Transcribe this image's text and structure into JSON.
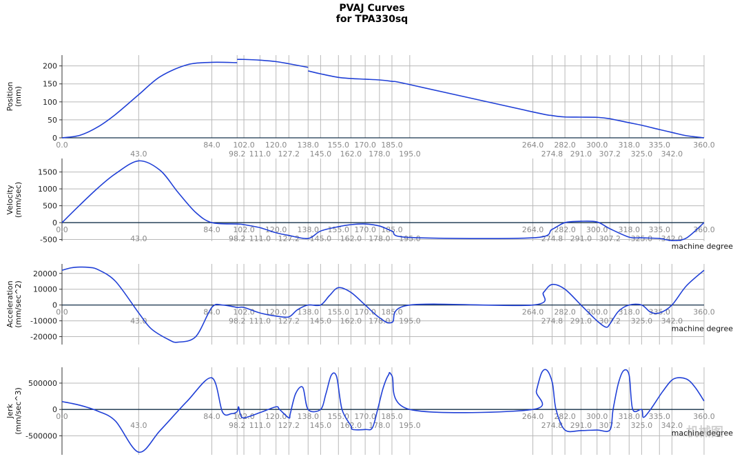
{
  "title_line1": "PVAJ Curves",
  "title_line2": "for TPA330sq",
  "watermark": "机械图",
  "colors": {
    "curve": "#1f3fd6",
    "grid": "#b8b8b8",
    "axis": "#14304a",
    "tick": "#888888"
  },
  "chart_data": [
    {
      "type": "line",
      "ylabel": [
        "Position",
        "(mm)"
      ],
      "xlabel": "",
      "ylim": [
        0,
        230
      ],
      "yticks": [
        0,
        50,
        100,
        150,
        200
      ],
      "xlim": [
        0,
        360
      ],
      "x": [
        0,
        10,
        20,
        30,
        43,
        55,
        70,
        84,
        98.2,
        98.2,
        102,
        111,
        120,
        127.2,
        138,
        138,
        145,
        155,
        162,
        170,
        178,
        185,
        195,
        264,
        274.8,
        282,
        291,
        300,
        307.2,
        318,
        325,
        335,
        342,
        350,
        360
      ],
      "y": [
        0,
        7,
        30,
        65,
        120,
        170,
        203,
        210,
        209,
        218,
        218,
        216,
        212,
        206,
        196,
        186,
        178,
        168,
        165,
        163,
        161,
        157,
        148,
        72,
        62,
        58,
        57.5,
        57,
        53,
        42,
        35,
        23,
        15,
        6,
        0
      ]
    },
    {
      "type": "line",
      "ylabel": [
        "Velocity",
        "(mm/sec)"
      ],
      "xlabel": "machine degree",
      "ylim": [
        -550,
        1900
      ],
      "yticks": [
        -500,
        0,
        500,
        1000,
        1500
      ],
      "xlim": [
        0,
        360
      ],
      "x": [
        0,
        10,
        20,
        30,
        43,
        55,
        65,
        75,
        84,
        98.2,
        102,
        111,
        120,
        127.2,
        138,
        145,
        155,
        162,
        170,
        178,
        185,
        195,
        264,
        274.8,
        282,
        291,
        300,
        307.2,
        318,
        325,
        335,
        342,
        350,
        360
      ],
      "y": [
        0,
        520,
        1020,
        1450,
        1830,
        1550,
        900,
        300,
        0,
        -40,
        -60,
        -150,
        -300,
        -380,
        -470,
        -250,
        -120,
        -60,
        -40,
        -100,
        -250,
        -440,
        -450,
        -200,
        0,
        40,
        20,
        -180,
        -430,
        -450,
        -470,
        -530,
        -460,
        0
      ]
    },
    {
      "type": "line",
      "ylabel": [
        "Acceleration",
        "(mm/sec^2)"
      ],
      "xlabel": "machine degree",
      "ylim": [
        -25000,
        26000
      ],
      "yticks": [
        -20000,
        -10000,
        0,
        10000,
        20000
      ],
      "xlim": [
        0,
        360
      ],
      "x": [
        0,
        5,
        10,
        15,
        20,
        30,
        43,
        50,
        60,
        65,
        75,
        84,
        90,
        98.2,
        102,
        111,
        120,
        127.2,
        132,
        138,
        145,
        150,
        155,
        162,
        170,
        178,
        185,
        195,
        264,
        270,
        274.8,
        282,
        291,
        300,
        305,
        307.2,
        312,
        318,
        325,
        330,
        335,
        342,
        350,
        360
      ],
      "y": [
        22000,
        23500,
        24000,
        23800,
        22500,
        15000,
        -5000,
        -15000,
        -22000,
        -23500,
        -20000,
        -1500,
        0,
        -1500,
        -1500,
        -5000,
        -7000,
        -7500,
        -3000,
        0,
        0,
        6000,
        11000,
        8000,
        0,
        -8000,
        -11000,
        0,
        0,
        8000,
        13000,
        10000,
        0,
        -10000,
        -14000,
        -12000,
        -4000,
        0,
        0,
        -4500,
        -5000,
        0,
        12000,
        22000
      ]
    },
    {
      "type": "line",
      "ylabel": [
        "Jerk",
        "(mm/sec^3)"
      ],
      "xlabel": "machine degree",
      "ylim": [
        -860000,
        800000
      ],
      "yticks": [
        -500000,
        0,
        500000
      ],
      "xlim": [
        0,
        360
      ],
      "x": [
        0,
        10,
        20,
        30,
        43,
        55,
        70,
        84,
        90,
        95,
        98.2,
        99,
        100,
        102,
        111,
        120,
        122,
        127.2,
        128,
        131,
        135,
        138,
        145,
        148,
        151,
        154,
        157,
        162,
        163,
        170,
        174,
        177,
        180,
        183,
        185,
        195,
        264,
        266,
        269,
        272,
        275,
        277,
        282,
        291,
        300,
        307.2,
        309,
        312,
        315,
        318,
        320,
        325,
        326,
        330,
        337,
        343,
        350,
        355,
        360
      ],
      "y": [
        150000,
        80000,
        -30000,
        -220000,
        -810000,
        -400000,
        150000,
        600000,
        -50000,
        -80000,
        -40000,
        50000,
        -90000,
        -160000,
        -60000,
        50000,
        0,
        -160000,
        -80000,
        300000,
        420000,
        0,
        0,
        300000,
        650000,
        620000,
        0,
        -310000,
        -380000,
        -380000,
        -350000,
        0,
        400000,
        650000,
        640000,
        0,
        0,
        350000,
        700000,
        740000,
        500000,
        0,
        -390000,
        -400000,
        -390000,
        -390000,
        0,
        500000,
        740000,
        650000,
        0,
        0,
        -150000,
        0,
        350000,
        580000,
        580000,
        420000,
        160000
      ]
    }
  ],
  "xticks_top": [
    "0.0",
    "84.0",
    "102.0",
    "120.0",
    "138.0",
    "155.0",
    "170.0",
    "185.0",
    "264.0",
    "282.0",
    "300.0",
    "318.0",
    "335.0",
    "360.0"
  ],
  "xticks_bottom": [
    "43.0",
    "98.2",
    "111.0",
    "127.2",
    "145.0",
    "162.0",
    "178.0",
    "195.0",
    "274.8",
    "291.0",
    "307.2",
    "325.0",
    "342.0"
  ]
}
